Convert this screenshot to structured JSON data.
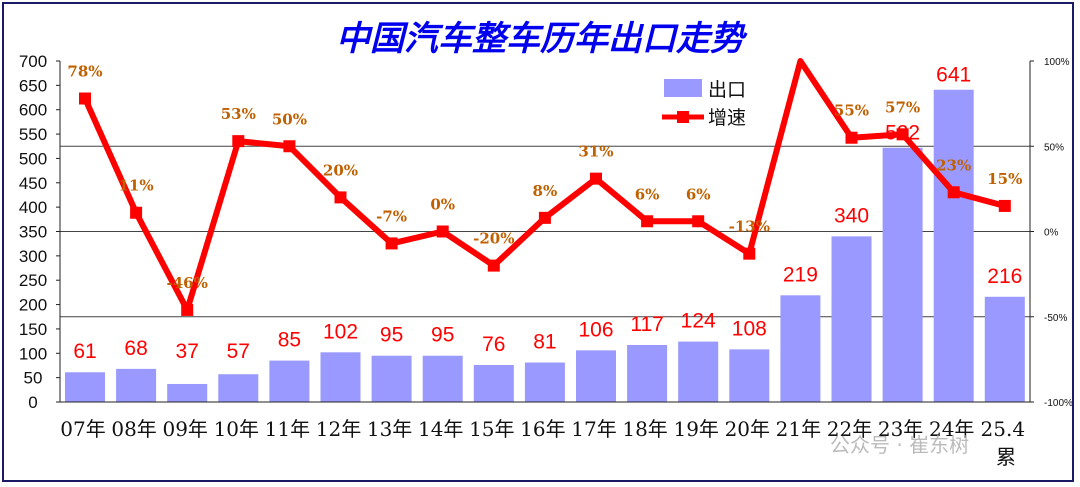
{
  "chart_data": {
    "type": "bar",
    "title": "中国汽车整车历年出口走势",
    "categories": [
      "07年",
      "08年",
      "09年",
      "10年",
      "11年",
      "12年",
      "13年",
      "14年",
      "15年",
      "16年",
      "17年",
      "18年",
      "19年",
      "20年",
      "21年",
      "22年",
      "23年",
      "24年",
      "25.4"
    ],
    "last_category_suffix": "累",
    "series": [
      {
        "name": "出口",
        "type": "bar",
        "axis": "left",
        "color": "#9999ff",
        "values": [
          61,
          68,
          37,
          57,
          85,
          102,
          95,
          95,
          76,
          81,
          106,
          117,
          124,
          108,
          219,
          340,
          522,
          641,
          216
        ]
      },
      {
        "name": "增速",
        "type": "line",
        "axis": "right",
        "color": "#ff0000",
        "values": [
          78,
          11,
          -46,
          53,
          50,
          20,
          -7,
          0,
          -20,
          8,
          31,
          6,
          6,
          -13,
          101,
          55,
          57,
          23,
          15
        ],
        "labels": [
          "78%",
          "11%",
          "-46%",
          "53%",
          "50%",
          "20%",
          "-7%",
          "0%",
          "-20%",
          "8%",
          "31%",
          "6%",
          "6%",
          "-13%",
          "",
          "55%",
          "57%",
          "23%",
          "15%"
        ]
      }
    ],
    "left_axis": {
      "ylim": [
        0,
        700
      ],
      "ticks": [
        "0",
        "50",
        "100",
        "150",
        "200",
        "250",
        "300",
        "350",
        "400",
        "450",
        "500",
        "550",
        "600",
        "650",
        "700"
      ]
    },
    "right_axis": {
      "ylim": [
        -100,
        100
      ],
      "ticks": [
        "-100%",
        "-50%",
        "0%",
        "50%",
        "100%"
      ]
    },
    "gridlines_at_left_values": [
      175,
      350,
      525
    ],
    "legend": {
      "position": "top-right",
      "items": [
        "出口",
        "增速"
      ]
    },
    "watermark": "公众号 · 崔东树"
  }
}
